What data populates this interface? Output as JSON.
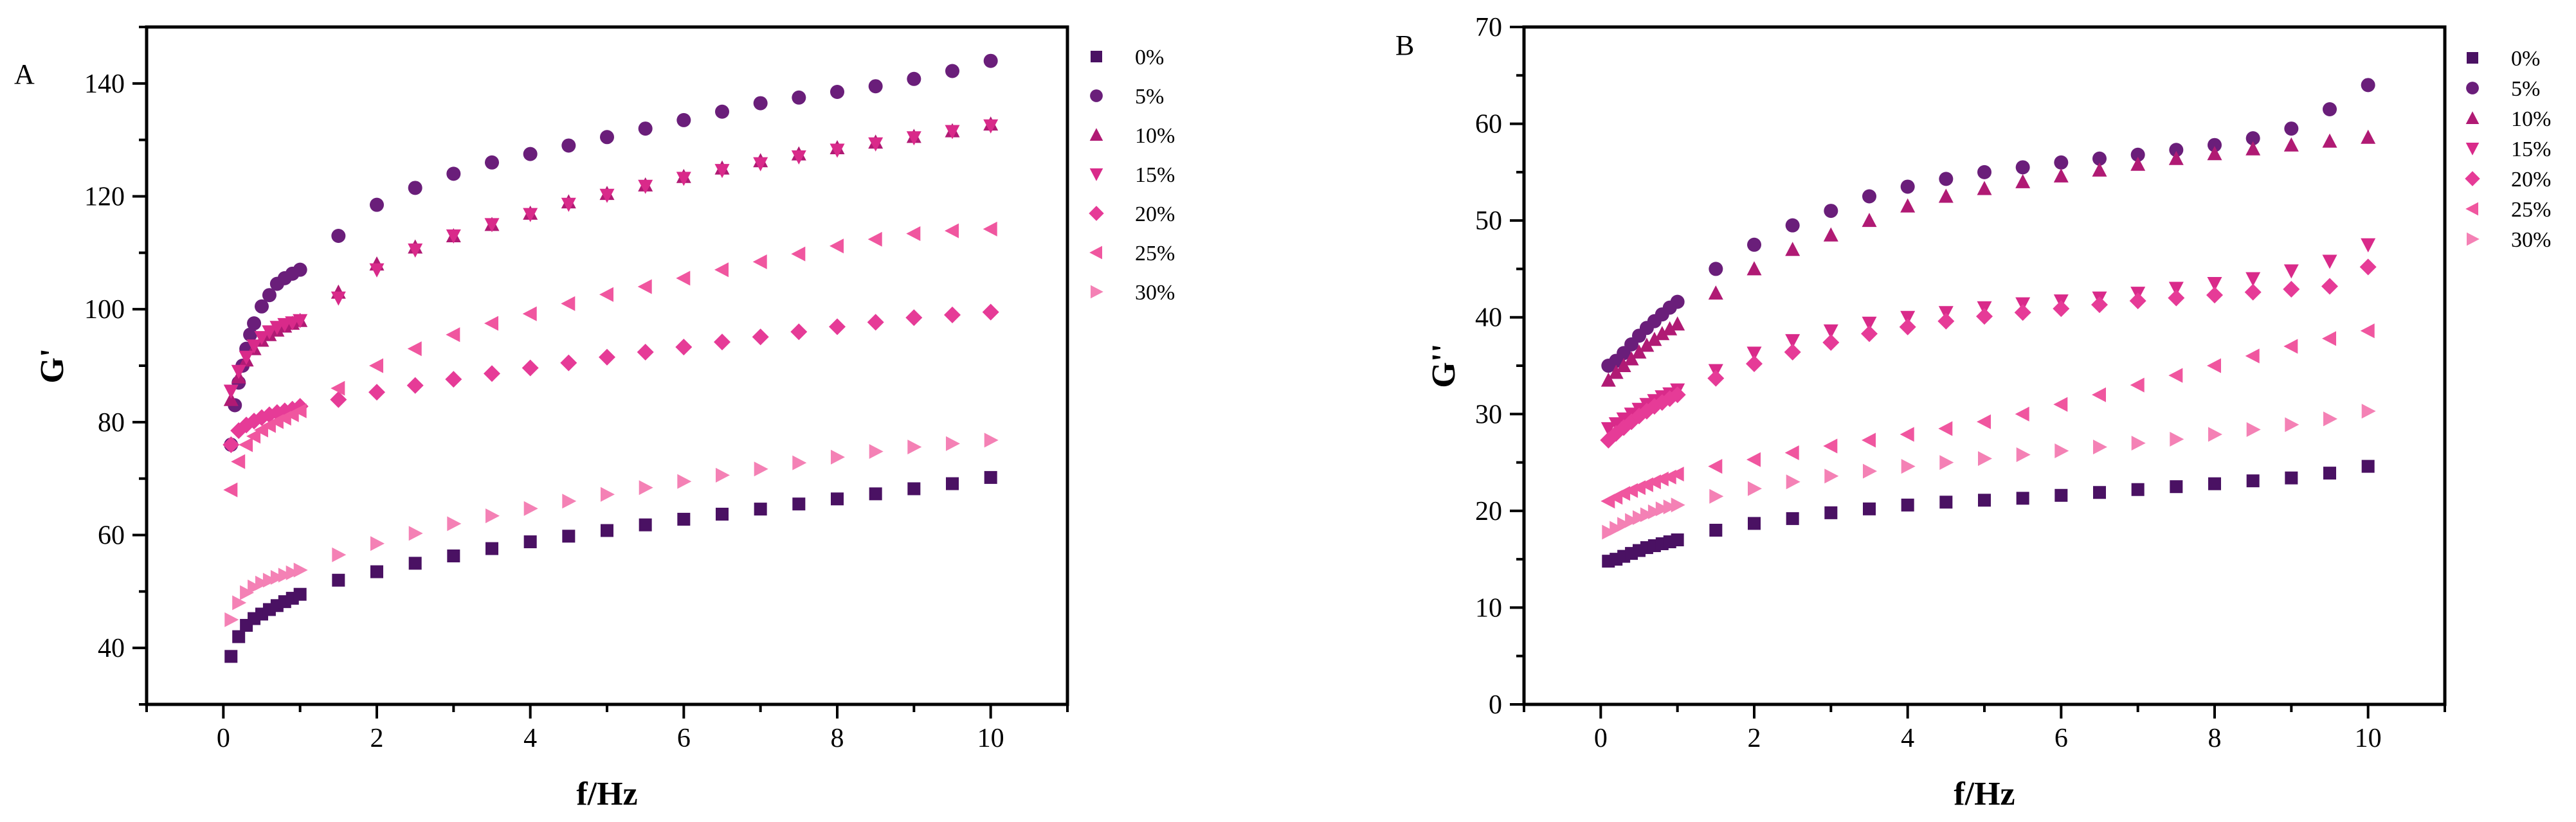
{
  "figure": {
    "panels": [
      "A",
      "B"
    ]
  },
  "chart_data": [
    {
      "panel": "A",
      "type": "scatter",
      "xlabel": "f/Hz",
      "ylabel": "G'",
      "xlim": [
        -1,
        11
      ],
      "ylim": [
        30,
        150
      ],
      "xticks": [
        0,
        2,
        4,
        6,
        8,
        10
      ],
      "yticks": [
        40,
        60,
        80,
        100,
        120,
        140
      ],
      "legend_position": "right",
      "series": [
        {
          "name": "0%",
          "marker": "square",
          "color": "#4a1163",
          "x": [
            0.1,
            0.2,
            0.3,
            0.4,
            0.5,
            0.6,
            0.7,
            0.8,
            0.9,
            1,
            1.5,
            2,
            2.5,
            3,
            3.5,
            4,
            4.5,
            5,
            5.5,
            6,
            6.5,
            7,
            7.5,
            8,
            8.5,
            9,
            9.5,
            10
          ],
          "y": [
            38.5,
            42,
            44,
            45.2,
            46,
            46.8,
            47.5,
            48.2,
            48.8,
            49.5,
            52,
            53.5,
            55,
            56.3,
            57.6,
            58.8,
            59.8,
            60.8,
            61.8,
            62.8,
            63.7,
            64.6,
            65.5,
            66.4,
            67.3,
            68.2,
            69.1,
            70.2
          ]
        },
        {
          "name": "5%",
          "marker": "circle",
          "color": "#6a1e7a",
          "x": [
            0.1,
            0.15,
            0.2,
            0.25,
            0.3,
            0.35,
            0.4,
            0.5,
            0.6,
            0.7,
            0.8,
            0.9,
            1,
            1.5,
            2,
            2.5,
            3,
            3.5,
            4,
            4.5,
            5,
            5.5,
            6,
            6.5,
            7,
            7.5,
            8,
            8.5,
            9,
            9.5,
            10
          ],
          "y": [
            76,
            83,
            87,
            90,
            93,
            95.5,
            97.5,
            100.5,
            102.5,
            104.5,
            105.5,
            106.3,
            107,
            113,
            118.5,
            121.5,
            124,
            126,
            127.5,
            129,
            130.5,
            132,
            133.5,
            135,
            136.5,
            137.5,
            138.5,
            139.5,
            140.8,
            142.2,
            144
          ]
        },
        {
          "name": "10%",
          "marker": "triangle-up",
          "color": "#b01a74",
          "x": [
            0.1,
            0.2,
            0.3,
            0.4,
            0.5,
            0.6,
            0.7,
            0.8,
            0.9,
            1,
            1.5,
            2,
            2.5,
            3,
            3.5,
            4,
            4.5,
            5,
            5.5,
            6,
            6.5,
            7,
            7.5,
            8,
            8.5,
            9,
            9.5,
            10
          ],
          "y": [
            84,
            88,
            91,
            93,
            94.5,
            95.5,
            96.3,
            97,
            97.5,
            98,
            103,
            108,
            111,
            113,
            115,
            117,
            119,
            120.5,
            122,
            123.5,
            125,
            126.3,
            127.5,
            128.6,
            129.6,
            130.6,
            131.6,
            132.8
          ]
        },
        {
          "name": "15%",
          "marker": "triangle-down",
          "color": "#d92a8a",
          "x": [
            0.1,
            0.2,
            0.3,
            0.4,
            0.5,
            0.6,
            0.7,
            0.8,
            0.9,
            1,
            1.5,
            2,
            2.5,
            3,
            3.5,
            4,
            4.5,
            5,
            5.5,
            6,
            6.5,
            7,
            7.5,
            8,
            8.5,
            9,
            9.5,
            10
          ],
          "y": [
            85.5,
            89,
            91.5,
            93.5,
            95,
            96,
            96.8,
            97.3,
            97.6,
            98,
            102,
            107,
            110.5,
            113,
            115,
            116.8,
            118.6,
            120.2,
            121.8,
            123.2,
            124.6,
            125.8,
            127,
            128.2,
            129.3,
            130.4,
            131.5,
            132.5
          ]
        },
        {
          "name": "20%",
          "marker": "diamond",
          "color": "#e63b97",
          "x": [
            0.1,
            0.2,
            0.3,
            0.4,
            0.5,
            0.6,
            0.7,
            0.8,
            0.9,
            1,
            1.5,
            2,
            2.5,
            3,
            3.5,
            4,
            4.5,
            5,
            5.5,
            6,
            6.5,
            7,
            7.5,
            8,
            8.5,
            9,
            9.5,
            10
          ],
          "y": [
            76,
            78.5,
            79.5,
            80.2,
            80.8,
            81.3,
            81.7,
            82,
            82.3,
            82.8,
            84,
            85.3,
            86.5,
            87.6,
            88.6,
            89.6,
            90.5,
            91.5,
            92.4,
            93.3,
            94.2,
            95.1,
            96,
            96.9,
            97.7,
            98.5,
            99,
            99.5
          ]
        },
        {
          "name": "25%",
          "marker": "triangle-left",
          "color": "#f0569f",
          "x": [
            0.1,
            0.2,
            0.3,
            0.4,
            0.5,
            0.6,
            0.7,
            0.8,
            0.9,
            1,
            1.5,
            2,
            2.5,
            3,
            3.5,
            4,
            4.5,
            5,
            5.5,
            6,
            6.5,
            7,
            7.5,
            8,
            8.5,
            9,
            9.5,
            10
          ],
          "y": [
            68,
            73,
            76,
            77.5,
            78.6,
            79.4,
            80.1,
            80.7,
            81.3,
            82,
            86,
            90,
            93,
            95.5,
            97.5,
            99.2,
            101,
            102.6,
            104,
            105.5,
            107,
            108.4,
            109.8,
            111.2,
            112.4,
            113.4,
            113.9,
            114.2
          ]
        },
        {
          "name": "30%",
          "marker": "triangle-right",
          "color": "#f481b5",
          "x": [
            0.1,
            0.2,
            0.3,
            0.4,
            0.5,
            0.6,
            0.7,
            0.8,
            0.9,
            1,
            1.5,
            2,
            2.5,
            3,
            3.5,
            4,
            4.5,
            5,
            5.5,
            6,
            6.5,
            7,
            7.5,
            8,
            8.5,
            9,
            9.5,
            10
          ],
          "y": [
            45,
            48,
            49.8,
            50.8,
            51.5,
            52,
            52.5,
            52.9,
            53.3,
            53.8,
            56.5,
            58.5,
            60.3,
            62,
            63.4,
            64.7,
            66,
            67.2,
            68.4,
            69.5,
            70.6,
            71.7,
            72.8,
            73.8,
            74.8,
            75.6,
            76.2,
            76.8
          ]
        }
      ]
    },
    {
      "panel": "B",
      "type": "scatter",
      "xlabel": "f/Hz",
      "ylabel": "G''",
      "xlim": [
        -1,
        11
      ],
      "ylim": [
        0,
        70
      ],
      "xticks": [
        0,
        2,
        4,
        6,
        8,
        10
      ],
      "yticks": [
        0,
        10,
        20,
        30,
        40,
        50,
        60,
        70
      ],
      "legend_position": "right",
      "series": [
        {
          "name": "0%",
          "marker": "square",
          "color": "#4a1163",
          "x": [
            0.1,
            0.2,
            0.3,
            0.4,
            0.5,
            0.6,
            0.7,
            0.8,
            0.9,
            1,
            1.5,
            2,
            2.5,
            3,
            3.5,
            4,
            4.5,
            5,
            5.5,
            6,
            6.5,
            7,
            7.5,
            8,
            8.5,
            9,
            9.5,
            10
          ],
          "y": [
            14.8,
            15,
            15.3,
            15.6,
            15.9,
            16.2,
            16.4,
            16.6,
            16.8,
            17,
            18,
            18.7,
            19.2,
            19.8,
            20.2,
            20.6,
            20.9,
            21.1,
            21.3,
            21.6,
            21.9,
            22.2,
            22.5,
            22.8,
            23.1,
            23.4,
            23.9,
            24.6
          ]
        },
        {
          "name": "5%",
          "marker": "circle",
          "color": "#6a1e7a",
          "x": [
            0.1,
            0.2,
            0.3,
            0.4,
            0.5,
            0.6,
            0.7,
            0.8,
            0.9,
            1,
            1.5,
            2,
            2.5,
            3,
            3.5,
            4,
            4.5,
            5,
            5.5,
            6,
            6.5,
            7,
            7.5,
            8,
            8.5,
            9,
            9.5,
            10
          ],
          "y": [
            35,
            35.5,
            36.3,
            37.2,
            38.1,
            38.9,
            39.6,
            40.3,
            41,
            41.6,
            45,
            47.5,
            49.5,
            51,
            52.5,
            53.5,
            54.3,
            55,
            55.5,
            56,
            56.4,
            56.8,
            57.3,
            57.8,
            58.5,
            59.5,
            61.5,
            64
          ]
        },
        {
          "name": "10%",
          "marker": "triangle-up",
          "color": "#b01a74",
          "x": [
            0.1,
            0.2,
            0.3,
            0.4,
            0.5,
            0.6,
            0.7,
            0.8,
            0.9,
            1,
            1.5,
            2,
            2.5,
            3,
            3.5,
            4,
            4.5,
            5,
            5.5,
            6,
            6.5,
            7,
            7.5,
            8,
            8.5,
            9,
            9.5,
            10
          ],
          "y": [
            33.5,
            34.3,
            35,
            35.7,
            36.4,
            37.1,
            37.7,
            38.3,
            38.8,
            39.3,
            42.5,
            45,
            47,
            48.5,
            50,
            51.5,
            52.5,
            53.3,
            54,
            54.6,
            55.2,
            55.8,
            56.4,
            56.9,
            57.4,
            57.8,
            58.2,
            58.6
          ]
        },
        {
          "name": "15%",
          "marker": "triangle-down",
          "color": "#d92a8a",
          "x": [
            0.1,
            0.2,
            0.3,
            0.4,
            0.5,
            0.6,
            0.7,
            0.8,
            0.9,
            1,
            1.5,
            2,
            2.5,
            3,
            3.5,
            4,
            4.5,
            5,
            5.5,
            6,
            6.5,
            7,
            7.5,
            8,
            8.5,
            9,
            9.5,
            10
          ],
          "y": [
            28.5,
            29,
            29.5,
            30,
            30.5,
            31,
            31.4,
            31.8,
            32.1,
            32.5,
            34.5,
            36.3,
            37.6,
            38.6,
            39.4,
            40,
            40.5,
            41,
            41.4,
            41.7,
            42,
            42.5,
            43,
            43.5,
            44,
            44.8,
            45.8,
            47.5
          ]
        },
        {
          "name": "20%",
          "marker": "diamond",
          "color": "#e63b97",
          "x": [
            0.1,
            0.2,
            0.3,
            0.4,
            0.5,
            0.6,
            0.7,
            0.8,
            0.9,
            1,
            1.5,
            2,
            2.5,
            3,
            3.5,
            4,
            4.5,
            5,
            5.5,
            6,
            6.5,
            7,
            7.5,
            8,
            8.5,
            9,
            9.5,
            10
          ],
          "y": [
            27.3,
            28,
            28.6,
            29.2,
            29.8,
            30.3,
            30.8,
            31.2,
            31.6,
            32,
            33.7,
            35.2,
            36.4,
            37.4,
            38.3,
            39,
            39.6,
            40.1,
            40.5,
            40.9,
            41.3,
            41.7,
            42,
            42.3,
            42.6,
            42.9,
            43.2,
            45.2
          ]
        },
        {
          "name": "25%",
          "marker": "triangle-left",
          "color": "#f0569f",
          "x": [
            0.1,
            0.2,
            0.3,
            0.4,
            0.5,
            0.6,
            0.7,
            0.8,
            0.9,
            1,
            1.5,
            2,
            2.5,
            3,
            3.5,
            4,
            4.5,
            5,
            5.5,
            6,
            6.5,
            7,
            7.5,
            8,
            8.5,
            9,
            9.5,
            10
          ],
          "y": [
            21,
            21.4,
            21.8,
            22.1,
            22.4,
            22.7,
            23,
            23.3,
            23.5,
            23.8,
            24.6,
            25.3,
            26,
            26.7,
            27.3,
            27.9,
            28.5,
            29.2,
            30,
            31,
            32,
            33,
            34,
            35,
            36,
            37,
            37.8,
            38.6
          ]
        },
        {
          "name": "30%",
          "marker": "triangle-right",
          "color": "#f481b5",
          "x": [
            0.1,
            0.2,
            0.3,
            0.4,
            0.5,
            0.6,
            0.7,
            0.8,
            0.9,
            1,
            1.5,
            2,
            2.5,
            3,
            3.5,
            4,
            4.5,
            5,
            5.5,
            6,
            6.5,
            7,
            7.5,
            8,
            8.5,
            9,
            9.5,
            10
          ],
          "y": [
            17.8,
            18.2,
            18.6,
            19,
            19.3,
            19.6,
            19.9,
            20.2,
            20.4,
            20.6,
            21.5,
            22.3,
            23,
            23.6,
            24.1,
            24.6,
            25,
            25.4,
            25.8,
            26.2,
            26.6,
            27,
            27.4,
            27.9,
            28.4,
            28.9,
            29.5,
            30.3
          ]
        }
      ]
    }
  ]
}
